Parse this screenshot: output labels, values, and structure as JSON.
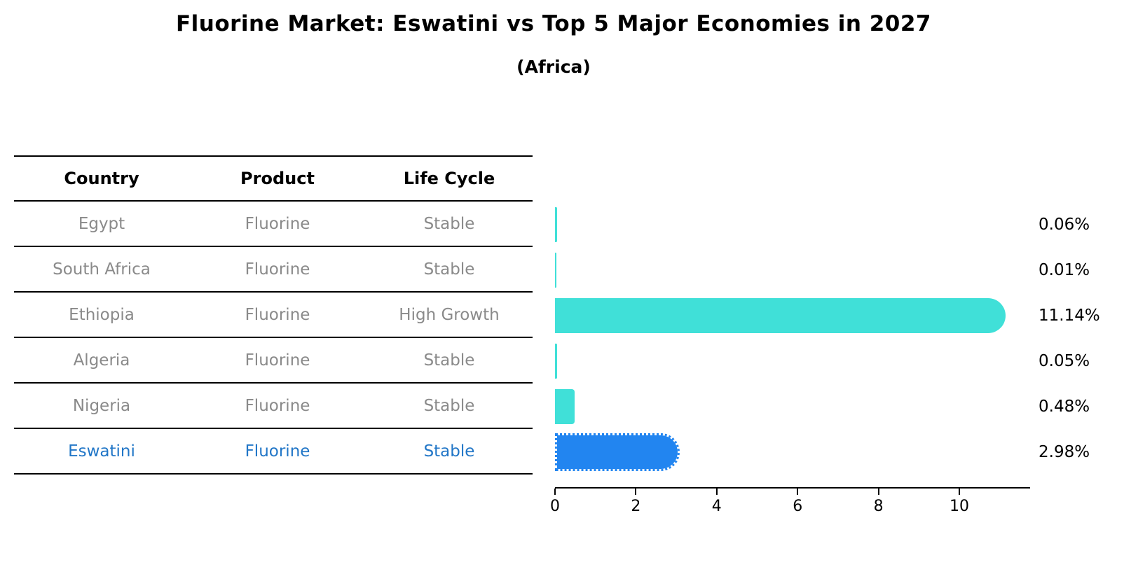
{
  "title": "Fluorine Market: Eswatini vs Top 5 Major Economies in 2027",
  "subtitle": "(Africa)",
  "table": {
    "columns": [
      "Country",
      "Product",
      "Life Cycle"
    ],
    "rows": [
      {
        "country": "Egypt",
        "product": "Fluorine",
        "life_cycle": "Stable",
        "highlight": false
      },
      {
        "country": "South Africa",
        "product": "Fluorine",
        "life_cycle": "Stable",
        "highlight": false
      },
      {
        "country": "Ethiopia",
        "product": "Fluorine",
        "life_cycle": "High Growth",
        "highlight": false
      },
      {
        "country": "Algeria",
        "product": "Fluorine",
        "life_cycle": "Stable",
        "highlight": false
      },
      {
        "country": "Nigeria",
        "product": "Fluorine",
        "life_cycle": "Stable",
        "highlight": false
      },
      {
        "country": "Eswatini",
        "product": "Fluorine",
        "life_cycle": "Stable",
        "highlight": true
      }
    ]
  },
  "chart_data": {
    "type": "bar",
    "orientation": "horizontal",
    "title": "Fluorine Market: Eswatini vs Top 5 Major Economies in 2027",
    "subtitle": "(Africa)",
    "categories": [
      "Egypt",
      "South Africa",
      "Ethiopia",
      "Algeria",
      "Nigeria",
      "Eswatini"
    ],
    "values": [
      0.06,
      0.01,
      11.14,
      0.05,
      0.48,
      2.98
    ],
    "value_labels": [
      "0.06%",
      "0.01%",
      "11.14%",
      "0.05%",
      "0.48%",
      "2.98%"
    ],
    "x_ticks": [
      0,
      2,
      4,
      6,
      8,
      10
    ],
    "xlim": [
      0,
      11.75
    ],
    "grid": false,
    "legend": false,
    "bar_color": "#40e0d8",
    "highlight_color": "#2285f0",
    "highlight_index": 5,
    "highlight_text_color": "#2176c7"
  }
}
